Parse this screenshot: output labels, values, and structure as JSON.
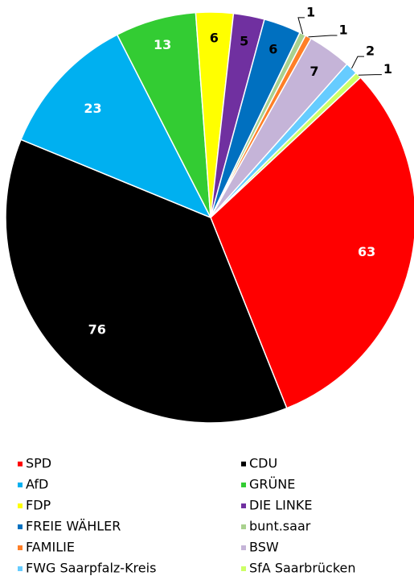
{
  "chart_data": {
    "type": "pie",
    "categories": [
      "SPD",
      "CDU",
      "AfD",
      "GRÜNE",
      "FDP",
      "DIE LINKE",
      "FREIE WÄHLER",
      "bunt.saar",
      "FAMILIE",
      "BSW",
      "FWG Saarpfalz-Kreis",
      "SfA Saarbrücken"
    ],
    "values": [
      63,
      76,
      23,
      13,
      6,
      5,
      6,
      1,
      1,
      7,
      2,
      1
    ],
    "colors": [
      "#ff0000",
      "#000000",
      "#00b0f0",
      "#33cc33",
      "#ffff00",
      "#7030a0",
      "#0070c0",
      "#a9d18e",
      "#ff7f27",
      "#c5b4d8",
      "#66ccff",
      "#ccff66"
    ],
    "legend": "bottom"
  }
}
